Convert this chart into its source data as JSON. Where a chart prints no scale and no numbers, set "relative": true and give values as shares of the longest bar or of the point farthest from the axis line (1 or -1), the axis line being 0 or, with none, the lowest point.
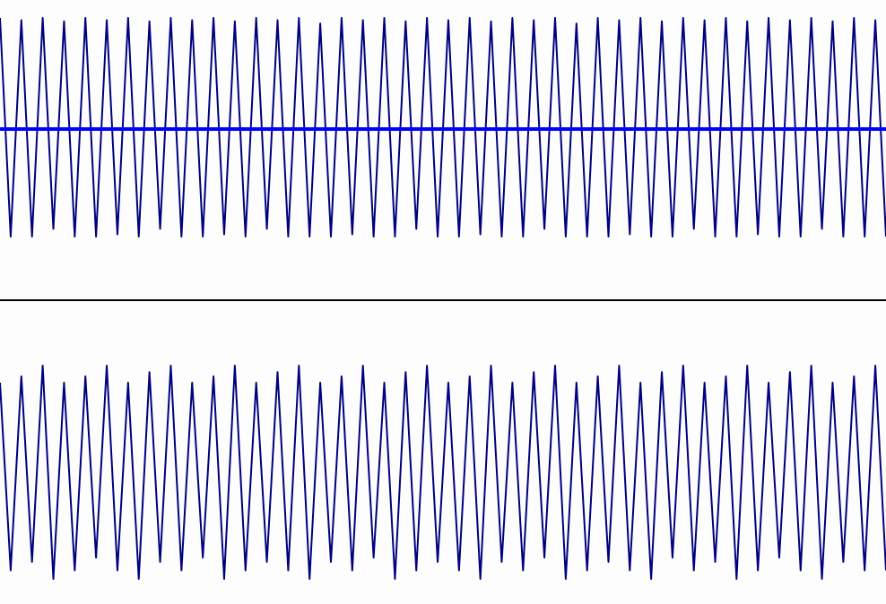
{
  "chart_data": [
    {
      "type": "line",
      "relative": true,
      "ref_lines": [
        {
          "axis": "y",
          "value": 0,
          "color": "#0000ff"
        }
      ],
      "categories": [
        null,
        null,
        null,
        null,
        null,
        null,
        null,
        null,
        null,
        null,
        null,
        null,
        null,
        null,
        null,
        null,
        null,
        null,
        null,
        null,
        null,
        null,
        null,
        null,
        null,
        null,
        null,
        null,
        null,
        null,
        null,
        null,
        null,
        null,
        null,
        null,
        null,
        null,
        null,
        null,
        null,
        null,
        null,
        null,
        null,
        null,
        null,
        null,
        null,
        null,
        null,
        null,
        null,
        null,
        null,
        null,
        null,
        null,
        null,
        null,
        null,
        null,
        null,
        null,
        null,
        null,
        null,
        null,
        null,
        null,
        null,
        null,
        null,
        null,
        null,
        null,
        null,
        null,
        null,
        null,
        null,
        null,
        null,
        null
      ],
      "series": [
        {
          "color": "#000080",
          "values": [
            1,
            -0.97,
            0.98,
            -0.97,
            1,
            -0.9,
            0.97,
            -0.97,
            1,
            -0.97,
            0.98,
            -0.95,
            1,
            -0.97,
            0.97,
            -0.9,
            1,
            -0.97,
            0.98,
            -0.97,
            1,
            -0.95,
            0.97,
            -0.97,
            1,
            -0.9,
            0.98,
            -0.97,
            1,
            -0.97,
            0.95,
            -0.97,
            1,
            -0.95,
            0.98,
            -0.97,
            1,
            -0.97,
            0.97,
            -0.9,
            1,
            -0.97,
            0.98,
            -0.97,
            1,
            -0.95,
            0.97,
            -0.97,
            1,
            -0.97,
            0.98,
            -0.9,
            1,
            -0.97,
            0.95,
            -0.97,
            1,
            -0.97,
            0.98,
            -0.95,
            1,
            -0.97,
            0.97,
            -0.97,
            1,
            -0.9,
            0.98,
            -0.97,
            1,
            -0.97,
            0.97,
            -0.95,
            1,
            -0.97,
            0.98,
            -0.97,
            1,
            -0.9,
            0.97,
            -0.97,
            1,
            -0.97,
            0.98,
            -0.97
          ]
        }
      ]
    },
    {
      "type": "line",
      "relative": true,
      "categories": [
        null,
        null,
        null,
        null,
        null,
        null,
        null,
        null,
        null,
        null,
        null,
        null,
        null,
        null,
        null,
        null,
        null,
        null,
        null,
        null,
        null,
        null,
        null,
        null,
        null,
        null,
        null,
        null,
        null,
        null,
        null,
        null,
        null,
        null,
        null,
        null,
        null,
        null,
        null,
        null,
        null,
        null,
        null,
        null,
        null,
        null,
        null,
        null,
        null,
        null,
        null,
        null,
        null,
        null,
        null,
        null,
        null,
        null,
        null,
        null,
        null,
        null,
        null,
        null,
        null,
        null,
        null,
        null,
        null,
        null,
        null,
        null,
        null,
        null,
        null,
        null,
        null,
        null,
        null,
        null,
        null,
        null,
        null,
        null
      ],
      "series": [
        {
          "color": "#000080",
          "values": [
            0.92,
            0.04,
            0.95,
            0.08,
            1,
            0,
            0.92,
            0.04,
            0.95,
            0.1,
            1,
            0.04,
            0.92,
            0,
            0.97,
            0.08,
            1,
            0.04,
            0.92,
            0.1,
            0.95,
            0,
            1,
            0.04,
            0.92,
            0.08,
            0.97,
            0.04,
            1,
            0,
            0.92,
            0.08,
            0.95,
            0.04,
            1,
            0.1,
            0.92,
            0,
            0.97,
            0.04,
            1,
            0.08,
            0.92,
            0.04,
            0.95,
            0,
            1,
            0.08,
            0.92,
            0.04,
            0.97,
            0.1,
            1,
            0,
            0.92,
            0.04,
            0.95,
            0.08,
            1,
            0.04,
            0.92,
            0,
            0.97,
            0.1,
            1,
            0.04,
            0.92,
            0.08,
            0.95,
            0,
            1,
            0.04,
            0.92,
            0.1,
            0.97,
            0.04,
            1,
            0,
            0.92,
            0.08,
            0.95,
            0.04,
            1,
            0.04
          ]
        }
      ]
    }
  ]
}
